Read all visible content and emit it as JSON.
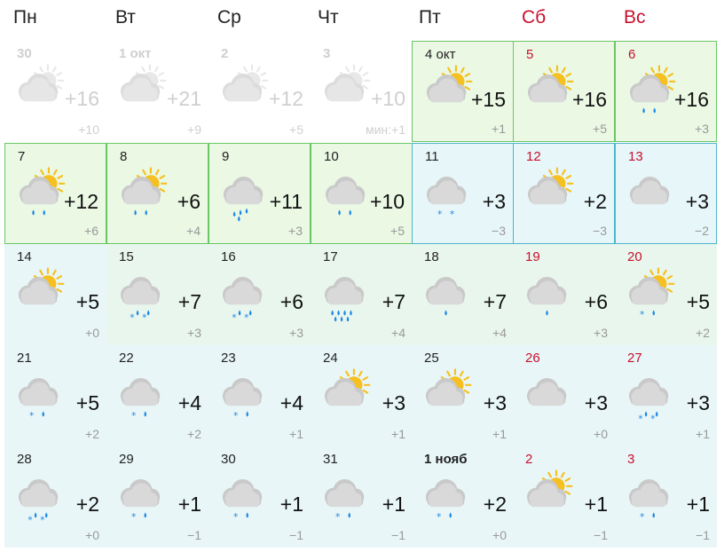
{
  "weekdays": [
    {
      "label": "Пн",
      "weekend": false
    },
    {
      "label": "Вт",
      "weekend": false
    },
    {
      "label": "Ср",
      "weekend": false
    },
    {
      "label": "Чт",
      "weekend": false
    },
    {
      "label": "Пт",
      "weekend": false
    },
    {
      "label": "Сб",
      "weekend": true
    },
    {
      "label": "Вс",
      "weekend": true
    }
  ],
  "weeks": [
    [
      {
        "date": "30",
        "tmax": "+16",
        "tmin": "+10",
        "icon": "sun-cloud",
        "precip": "none",
        "state": "past"
      },
      {
        "date": "1 окт",
        "tmax": "+21",
        "tmin": "+9",
        "icon": "sun-cloud",
        "precip": "none",
        "state": "past"
      },
      {
        "date": "2",
        "tmax": "+12",
        "tmin": "+5",
        "icon": "sun-cloud",
        "precip": "none",
        "state": "past"
      },
      {
        "date": "3",
        "tmax": "+10",
        "tmin": "мин:+1",
        "icon": "sun-cloud",
        "precip": "none",
        "state": "past"
      },
      {
        "date": "4 окт",
        "tmax": "+15",
        "tmin": "+1",
        "icon": "sun-cloud",
        "precip": "none",
        "state": "green"
      },
      {
        "date": "5",
        "tmax": "+16",
        "tmin": "+5",
        "icon": "sun-cloud",
        "precip": "none",
        "state": "green",
        "weekend": true
      },
      {
        "date": "6",
        "tmax": "+16",
        "tmin": "+3",
        "icon": "sun-cloud",
        "precip": "rain2",
        "state": "green",
        "weekend": true
      }
    ],
    [
      {
        "date": "7",
        "tmax": "+12",
        "tmin": "+6",
        "icon": "sun-cloud",
        "precip": "rain2",
        "state": "green"
      },
      {
        "date": "8",
        "tmax": "+6",
        "tmin": "+4",
        "icon": "sun-cloud",
        "precip": "rain2",
        "state": "green"
      },
      {
        "date": "9",
        "tmax": "+11",
        "tmin": "+3",
        "icon": "cloud",
        "precip": "rain3",
        "state": "green"
      },
      {
        "date": "10",
        "tmax": "+10",
        "tmin": "+5",
        "icon": "cloud",
        "precip": "rain2",
        "state": "green"
      },
      {
        "date": "11",
        "tmax": "+3",
        "tmin": "−3",
        "icon": "cloud",
        "precip": "snow2",
        "state": "blue"
      },
      {
        "date": "12",
        "tmax": "+2",
        "tmin": "−3",
        "icon": "sun-cloud",
        "precip": "none",
        "state": "blue",
        "weekend": true
      },
      {
        "date": "13",
        "tmax": "+3",
        "tmin": "−2",
        "icon": "cloud",
        "precip": "none",
        "state": "blue",
        "weekend": true
      }
    ],
    [
      {
        "date": "14",
        "tmax": "+5",
        "tmin": "+0",
        "icon": "sun-cloud",
        "precip": "none",
        "state": "blue2"
      },
      {
        "date": "15",
        "tmax": "+7",
        "tmin": "+3",
        "icon": "cloud",
        "precip": "mix",
        "state": "green2"
      },
      {
        "date": "16",
        "tmax": "+6",
        "tmin": "+3",
        "icon": "cloud",
        "precip": "mix",
        "state": "green2"
      },
      {
        "date": "17",
        "tmax": "+7",
        "tmin": "+4",
        "icon": "cloud",
        "precip": "rain4",
        "state": "green2"
      },
      {
        "date": "18",
        "tmax": "+7",
        "tmin": "+4",
        "icon": "cloud",
        "precip": "rain1",
        "state": "green2"
      },
      {
        "date": "19",
        "tmax": "+6",
        "tmin": "+3",
        "icon": "cloud",
        "precip": "rain1",
        "state": "green2",
        "weekend": true
      },
      {
        "date": "20",
        "tmax": "+5",
        "tmin": "+2",
        "icon": "sun-cloud",
        "precip": "snowrain",
        "state": "green2",
        "weekend": true
      }
    ],
    [
      {
        "date": "21",
        "tmax": "+5",
        "tmin": "+2",
        "icon": "cloud",
        "precip": "snowrain",
        "state": "blue2"
      },
      {
        "date": "22",
        "tmax": "+4",
        "tmin": "+2",
        "icon": "cloud",
        "precip": "snowrain",
        "state": "blue2"
      },
      {
        "date": "23",
        "tmax": "+4",
        "tmin": "+1",
        "icon": "cloud",
        "precip": "snowrain",
        "state": "blue2"
      },
      {
        "date": "24",
        "tmax": "+3",
        "tmin": "+1",
        "icon": "sun-cloud",
        "precip": "none",
        "state": "blue2"
      },
      {
        "date": "25",
        "tmax": "+3",
        "tmin": "+1",
        "icon": "sun-cloud",
        "precip": "none",
        "state": "blue2"
      },
      {
        "date": "26",
        "tmax": "+3",
        "tmin": "+0",
        "icon": "cloud",
        "precip": "none",
        "state": "blue2",
        "weekend": true
      },
      {
        "date": "27",
        "tmax": "+3",
        "tmin": "+1",
        "icon": "cloud",
        "precip": "mix",
        "state": "blue2",
        "weekend": true
      }
    ],
    [
      {
        "date": "28",
        "tmax": "+2",
        "tmin": "+0",
        "icon": "cloud",
        "precip": "mix",
        "state": "blue2"
      },
      {
        "date": "29",
        "tmax": "+1",
        "tmin": "−1",
        "icon": "cloud",
        "precip": "snowrain",
        "state": "blue2"
      },
      {
        "date": "30",
        "tmax": "+1",
        "tmin": "−1",
        "icon": "cloud",
        "precip": "snowrain",
        "state": "blue2"
      },
      {
        "date": "31",
        "tmax": "+1",
        "tmin": "−1",
        "icon": "cloud",
        "precip": "snowrain",
        "state": "blue2"
      },
      {
        "date": "1 нояб",
        "tmax": "+2",
        "tmin": "+0",
        "icon": "cloud",
        "precip": "snowrain",
        "state": "blue2",
        "bold": true
      },
      {
        "date": "2",
        "tmax": "+1",
        "tmin": "−1",
        "icon": "sun-cloud",
        "precip": "none",
        "state": "blue2",
        "weekend": true
      },
      {
        "date": "3",
        "tmax": "+1",
        "tmin": "−1",
        "icon": "cloud",
        "precip": "snowrain",
        "state": "blue2",
        "weekend": true
      }
    ]
  ],
  "colors": {
    "weekend_red": "#c8102e",
    "green_border": "#69c765",
    "green_bg": "#eaf8e4",
    "blue_border": "#4db5c9",
    "blue_bg": "#e7f6f9",
    "sun": "#f6c021",
    "cloud": "#d9d9d9",
    "rain": "#1e88e5"
  }
}
